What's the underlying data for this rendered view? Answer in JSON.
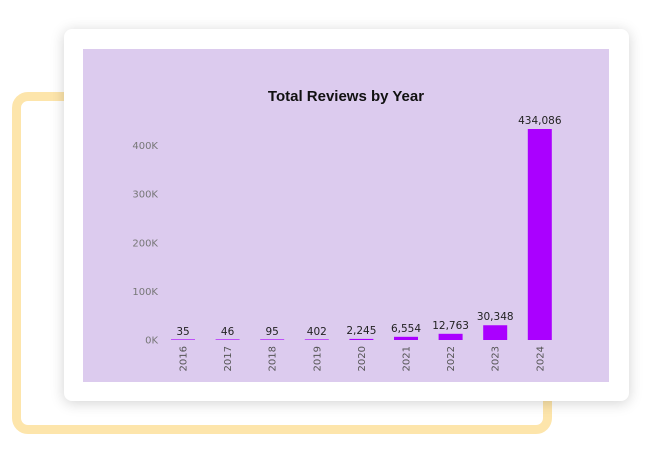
{
  "chart_data": {
    "type": "bar",
    "title": "Total Reviews by Year",
    "xlabel": "",
    "ylabel": "",
    "categories": [
      "2016",
      "2017",
      "2018",
      "2019",
      "2020",
      "2021",
      "2022",
      "2023",
      "2024"
    ],
    "values": [
      35,
      46,
      95,
      402,
      2245,
      6554,
      12763,
      30348,
      434086
    ],
    "data_labels": [
      "35",
      "46",
      "95",
      "402",
      "2,245",
      "6,554",
      "12,763",
      "30,348",
      "434,086"
    ],
    "ylim": [
      0,
      434086
    ],
    "y_ticks": [
      0,
      100000,
      200000,
      300000,
      400000
    ],
    "y_tick_labels": [
      "0K",
      "100K",
      "200K",
      "300K",
      "400K"
    ],
    "grid": false,
    "legend": "none",
    "bar_color": "#aa00ff",
    "background_color": "#dccbee"
  }
}
